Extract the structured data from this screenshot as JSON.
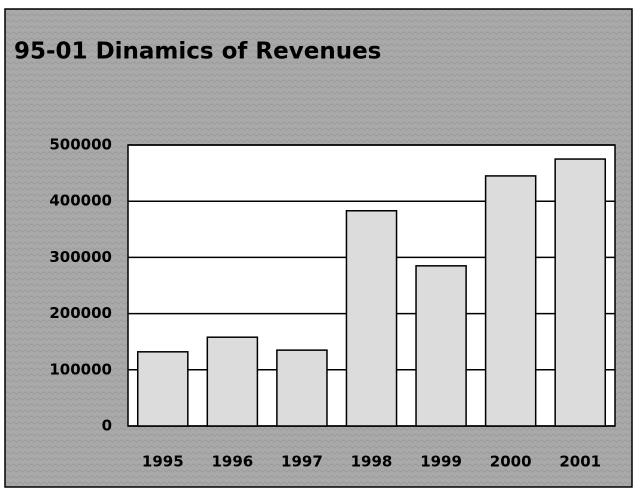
{
  "chart_data": {
    "type": "bar",
    "title": "95-01 Dinamics of Revenues",
    "categories": [
      "1995",
      "1996",
      "1997",
      "1998",
      "1999",
      "2000",
      "2001"
    ],
    "values": [
      132000,
      158000,
      135000,
      383000,
      285000,
      445000,
      475000
    ],
    "color": "#dcdcdc",
    "ylim": [
      0,
      500000
    ],
    "yticks": [
      0,
      100000,
      200000,
      300000,
      400000,
      500000
    ],
    "grid": true
  }
}
